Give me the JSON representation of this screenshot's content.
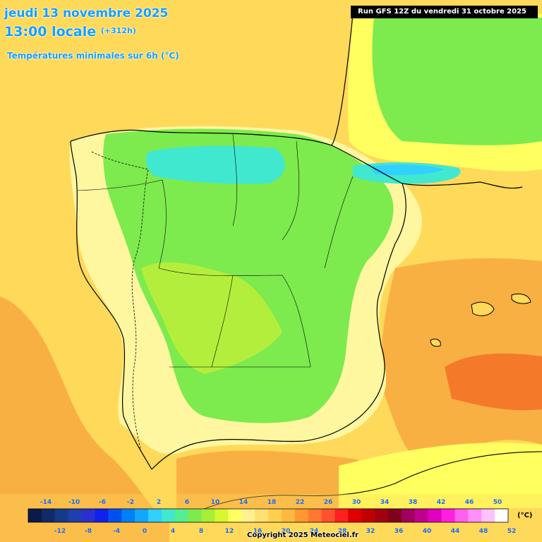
{
  "header": {
    "date": "jeudi 13 novembre 2025",
    "time": "13:00 locale",
    "offset": "(+312h)",
    "subtitle": "Températures minimales sur 6h (°C)",
    "run": "Run GFS 12Z du vendredi 31 octobre 2025"
  },
  "map": {
    "region": "Péninsule Ibérique",
    "colors": {
      "sea_warm": "#ffd95a",
      "sea_hot": "#f7a23a",
      "land_cool": "#7dea4e",
      "land_cold": "#2de3c8",
      "coast_line": "#000000"
    }
  },
  "legend": {
    "unit": "(°C)",
    "top_labels": [
      "-14",
      "-10",
      "-6",
      "-2",
      "2",
      "6",
      "10",
      "14",
      "18",
      "22",
      "26",
      "30",
      "34",
      "38",
      "42",
      "46",
      "50"
    ],
    "bottom_labels": [
      "-12",
      "-8",
      "-4",
      "0",
      "4",
      "8",
      "12",
      "16",
      "20",
      "24",
      "28",
      "32",
      "36",
      "40",
      "44",
      "48",
      "52"
    ],
    "colors": [
      "#0a1a4a",
      "#102a6a",
      "#163a8a",
      "#1f3fb0",
      "#2a30d0",
      "#1020ee",
      "#0050f0",
      "#0080f8",
      "#10a8ff",
      "#30d0ff",
      "#40e8d0",
      "#55ee90",
      "#7dea4e",
      "#a8ee38",
      "#d6f830",
      "#ffff60",
      "#fff090",
      "#ffe070",
      "#ffd050",
      "#ffb840",
      "#ff9830",
      "#ff7830",
      "#ff5030",
      "#ff2020",
      "#e00000",
      "#c00000",
      "#a00010",
      "#800020",
      "#a00060",
      "#c00090",
      "#e000c0",
      "#ff20e0",
      "#ff60f0",
      "#ff90f8",
      "#ffc0ff",
      "#ffffff"
    ]
  },
  "copyright": "Copyright 2025 Meteociel.fr"
}
